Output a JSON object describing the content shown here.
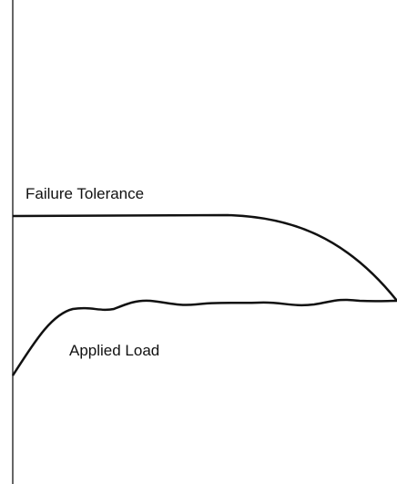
{
  "labels": {
    "failure_tolerance": "Failure Tolerance",
    "applied_load": "Applied Load"
  }
}
